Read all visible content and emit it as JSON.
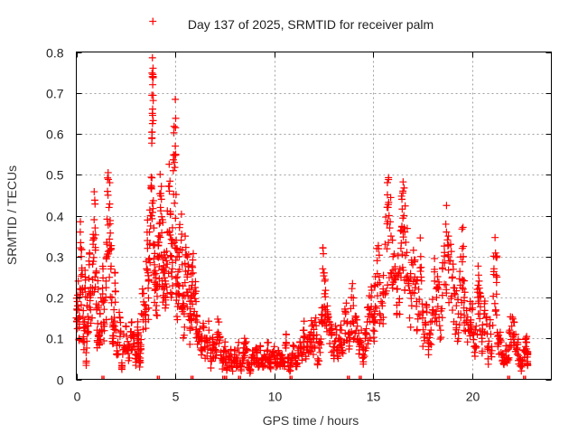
{
  "chart_data": {
    "type": "scatter",
    "title": "Day 137 of 2025, SRMTID for receiver palm",
    "xlabel": "GPS time / hours",
    "ylabel": "SRMTID / TECUs",
    "xlim": [
      0,
      24
    ],
    "ylim": [
      0,
      0.8
    ],
    "xticks": [
      0,
      5,
      10,
      15,
      20
    ],
    "xtick_labels": [
      "0",
      "5",
      "10",
      "15",
      "20"
    ],
    "yticks": [
      0,
      0.1,
      0.2,
      0.3,
      0.4,
      0.5,
      0.6,
      0.7,
      0.8
    ],
    "ytick_labels": [
      "0",
      "0.1",
      "0.2",
      "0.3",
      "0.4",
      "0.5",
      "0.6",
      "0.7",
      "0.8"
    ],
    "grid": true,
    "marker": "+",
    "series": [
      {
        "name": "palm",
        "color": "#ff0000",
        "points": [
          [
            0.0,
            0.15
          ],
          [
            0.05,
            0.19
          ],
          [
            0.1,
            0.24
          ],
          [
            0.15,
            0.1
          ],
          [
            0.2,
            0.36
          ],
          [
            0.25,
            0.3
          ],
          [
            0.3,
            0.22
          ],
          [
            0.35,
            0.14
          ],
          [
            0.4,
            0.09
          ],
          [
            0.45,
            0.25
          ],
          [
            0.5,
            0.04
          ],
          [
            0.55,
            0.18
          ],
          [
            0.6,
            0.13
          ],
          [
            0.65,
            0.28
          ],
          [
            0.7,
            0.2
          ],
          [
            0.8,
            0.15
          ],
          [
            0.85,
            0.33
          ],
          [
            0.9,
            0.39
          ],
          [
            0.95,
            0.37
          ],
          [
            1.0,
            0.26
          ],
          [
            1.05,
            0.12
          ],
          [
            1.1,
            0.22
          ],
          [
            1.15,
            0.09
          ],
          [
            1.2,
            0.16
          ],
          [
            1.3,
            0.19
          ],
          [
            1.35,
            0.27
          ],
          [
            1.4,
            0.13
          ],
          [
            1.5,
            0.24
          ],
          [
            1.55,
            0.33
          ],
          [
            1.6,
            0.45
          ],
          [
            1.65,
            0.42
          ],
          [
            1.7,
            0.38
          ],
          [
            1.75,
            0.32
          ],
          [
            1.8,
            0.2
          ],
          [
            1.85,
            0.1
          ],
          [
            1.9,
            0.17
          ],
          [
            1.95,
            0.26
          ],
          [
            2.0,
            0.12
          ],
          [
            2.1,
            0.09
          ],
          [
            2.2,
            0.15
          ],
          [
            2.3,
            0.04
          ],
          [
            2.4,
            0.11
          ],
          [
            2.5,
            0.13
          ],
          [
            2.6,
            0.07
          ],
          [
            2.7,
            0.08
          ],
          [
            2.8,
            0.14
          ],
          [
            2.9,
            0.1
          ],
          [
            3.0,
            0.06
          ],
          [
            3.05,
            0.05
          ],
          [
            3.1,
            0.12
          ],
          [
            3.15,
            0.09
          ],
          [
            3.2,
            0.03
          ],
          [
            3.25,
            0.08
          ],
          [
            3.3,
            0.16
          ],
          [
            3.4,
            0.21
          ],
          [
            3.5,
            0.18
          ],
          [
            3.55,
            0.27
          ],
          [
            3.6,
            0.32
          ],
          [
            3.65,
            0.24
          ],
          [
            3.7,
            0.36
          ],
          [
            3.75,
            0.4
          ],
          [
            3.8,
            0.47
          ],
          [
            3.82,
            0.59
          ],
          [
            3.84,
            0.65
          ],
          [
            3.86,
            0.72
          ],
          [
            3.88,
            0.74
          ],
          [
            3.9,
            0.33
          ],
          [
            3.95,
            0.28
          ],
          [
            4.0,
            0.22
          ],
          [
            4.05,
            0.18
          ],
          [
            4.1,
            0.3
          ],
          [
            4.15,
            0.35
          ],
          [
            4.2,
            0.38
          ],
          [
            4.25,
            0.42
          ],
          [
            4.3,
            0.44
          ],
          [
            4.35,
            0.39
          ],
          [
            4.4,
            0.26
          ],
          [
            4.45,
            0.31
          ],
          [
            4.5,
            0.24
          ],
          [
            4.55,
            0.29
          ],
          [
            4.6,
            0.36
          ],
          [
            4.7,
            0.46
          ],
          [
            4.75,
            0.41
          ],
          [
            4.8,
            0.3
          ],
          [
            4.85,
            0.27
          ],
          [
            4.9,
            0.51
          ],
          [
            4.95,
            0.53
          ],
          [
            5.0,
            0.57
          ],
          [
            5.02,
            0.55
          ],
          [
            5.05,
            0.32
          ],
          [
            5.1,
            0.25
          ],
          [
            5.15,
            0.21
          ],
          [
            5.2,
            0.3
          ],
          [
            5.3,
            0.34
          ],
          [
            5.35,
            0.28
          ],
          [
            5.4,
            0.18
          ],
          [
            5.45,
            0.16
          ],
          [
            5.5,
            0.35
          ],
          [
            5.6,
            0.25
          ],
          [
            5.65,
            0.28
          ],
          [
            5.7,
            0.22
          ],
          [
            5.75,
            0.12
          ],
          [
            5.8,
            0.2
          ],
          [
            5.85,
            0.23
          ],
          [
            5.9,
            0.26
          ],
          [
            6.0,
            0.21
          ],
          [
            6.05,
            0.19
          ],
          [
            6.1,
            0.14
          ],
          [
            6.2,
            0.11
          ],
          [
            6.3,
            0.1
          ],
          [
            6.4,
            0.13
          ],
          [
            6.5,
            0.08
          ],
          [
            6.6,
            0.1
          ],
          [
            6.7,
            0.12
          ],
          [
            6.8,
            0.05
          ],
          [
            6.9,
            0.09
          ],
          [
            7.0,
            0.07
          ],
          [
            7.1,
            0.11
          ],
          [
            7.2,
            0.14
          ],
          [
            7.3,
            0.06
          ],
          [
            7.4,
            0.04
          ],
          [
            7.5,
            0.08
          ],
          [
            7.6,
            0.03
          ],
          [
            7.7,
            0.05
          ],
          [
            7.8,
            0.07
          ],
          [
            7.9,
            0.02
          ],
          [
            8.0,
            0.06
          ],
          [
            8.1,
            0.04
          ],
          [
            8.2,
            0.09
          ],
          [
            8.3,
            0.03
          ],
          [
            8.4,
            0.05
          ],
          [
            8.5,
            0.1
          ],
          [
            8.6,
            0.07
          ],
          [
            8.7,
            0.04
          ],
          [
            8.8,
            0.02
          ],
          [
            8.9,
            0.06
          ],
          [
            9.0,
            0.05
          ],
          [
            9.1,
            0.07
          ],
          [
            9.2,
            0.03
          ],
          [
            9.3,
            0.08
          ],
          [
            9.4,
            0.04
          ],
          [
            9.5,
            0.06
          ],
          [
            9.6,
            0.05
          ],
          [
            9.7,
            0.09
          ],
          [
            9.8,
            0.04
          ],
          [
            9.9,
            0.06
          ],
          [
            10.0,
            0.08
          ],
          [
            10.1,
            0.03
          ],
          [
            10.2,
            0.07
          ],
          [
            10.3,
            0.05
          ],
          [
            10.4,
            0.06
          ],
          [
            10.5,
            0.04
          ],
          [
            10.6,
            0.09
          ],
          [
            10.7,
            0.05
          ],
          [
            10.8,
            0.03
          ],
          [
            10.9,
            0.06
          ],
          [
            11.0,
            0.08
          ],
          [
            11.1,
            0.04
          ],
          [
            11.2,
            0.07
          ],
          [
            11.3,
            0.09
          ],
          [
            11.4,
            0.06
          ],
          [
            11.5,
            0.12
          ],
          [
            11.6,
            0.05
          ],
          [
            11.7,
            0.1
          ],
          [
            11.8,
            0.08
          ],
          [
            11.9,
            0.13
          ],
          [
            12.0,
            0.1
          ],
          [
            12.1,
            0.15
          ],
          [
            12.2,
            0.05
          ],
          [
            12.3,
            0.09
          ],
          [
            12.4,
            0.14
          ],
          [
            12.45,
            0.27
          ],
          [
            12.5,
            0.26
          ],
          [
            12.55,
            0.24
          ],
          [
            12.6,
            0.17
          ],
          [
            12.7,
            0.16
          ],
          [
            12.8,
            0.12
          ],
          [
            12.9,
            0.11
          ],
          [
            13.0,
            0.08
          ],
          [
            13.1,
            0.13
          ],
          [
            13.2,
            0.07
          ],
          [
            13.3,
            0.1
          ],
          [
            13.4,
            0.12
          ],
          [
            13.5,
            0.09
          ],
          [
            13.6,
            0.16
          ],
          [
            13.7,
            0.14
          ],
          [
            13.8,
            0.11
          ],
          [
            13.9,
            0.2
          ],
          [
            14.0,
            0.18
          ],
          [
            14.1,
            0.15
          ],
          [
            14.2,
            0.13
          ],
          [
            14.3,
            0.08
          ],
          [
            14.4,
            0.12
          ],
          [
            14.5,
            0.06
          ],
          [
            14.6,
            0.1
          ],
          [
            14.7,
            0.14
          ],
          [
            14.8,
            0.17
          ],
          [
            14.9,
            0.2
          ],
          [
            15.0,
            0.12
          ],
          [
            15.05,
            0.16
          ],
          [
            15.1,
            0.23
          ],
          [
            15.2,
            0.29
          ],
          [
            15.3,
            0.25
          ],
          [
            15.4,
            0.19
          ],
          [
            15.5,
            0.21
          ],
          [
            15.6,
            0.33
          ],
          [
            15.7,
            0.38
          ],
          [
            15.75,
            0.42
          ],
          [
            15.8,
            0.4
          ],
          [
            15.9,
            0.35
          ],
          [
            16.0,
            0.3
          ],
          [
            16.1,
            0.27
          ],
          [
            16.2,
            0.22
          ],
          [
            16.3,
            0.26
          ],
          [
            16.4,
            0.32
          ],
          [
            16.45,
            0.44
          ],
          [
            16.5,
            0.46
          ],
          [
            16.55,
            0.4
          ],
          [
            16.6,
            0.36
          ],
          [
            16.7,
            0.31
          ],
          [
            16.8,
            0.24
          ],
          [
            16.9,
            0.21
          ],
          [
            17.0,
            0.28
          ],
          [
            17.1,
            0.25
          ],
          [
            17.2,
            0.19
          ],
          [
            17.3,
            0.22
          ],
          [
            17.4,
            0.3
          ],
          [
            17.5,
            0.15
          ],
          [
            17.6,
            0.11
          ],
          [
            17.7,
            0.18
          ],
          [
            17.8,
            0.08
          ],
          [
            17.9,
            0.14
          ],
          [
            18.0,
            0.17
          ],
          [
            18.1,
            0.24
          ],
          [
            18.2,
            0.2
          ],
          [
            18.3,
            0.22
          ],
          [
            18.4,
            0.12
          ],
          [
            18.5,
            0.27
          ],
          [
            18.6,
            0.31
          ],
          [
            18.7,
            0.36
          ],
          [
            18.8,
            0.35
          ],
          [
            18.9,
            0.29
          ],
          [
            19.0,
            0.25
          ],
          [
            19.1,
            0.21
          ],
          [
            19.2,
            0.18
          ],
          [
            19.3,
            0.16
          ],
          [
            19.4,
            0.23
          ],
          [
            19.5,
            0.32
          ],
          [
            19.55,
            0.3
          ],
          [
            19.6,
            0.2
          ],
          [
            19.7,
            0.14
          ],
          [
            19.8,
            0.12
          ],
          [
            19.9,
            0.19
          ],
          [
            20.0,
            0.17
          ],
          [
            20.1,
            0.08
          ],
          [
            20.2,
            0.13
          ],
          [
            20.3,
            0.23
          ],
          [
            20.35,
            0.24
          ],
          [
            20.4,
            0.21
          ],
          [
            20.5,
            0.1
          ],
          [
            20.6,
            0.16
          ],
          [
            20.7,
            0.15
          ],
          [
            20.8,
            0.05
          ],
          [
            20.9,
            0.13
          ],
          [
            21.0,
            0.07
          ],
          [
            21.1,
            0.27
          ],
          [
            21.2,
            0.3
          ],
          [
            21.25,
            0.25
          ],
          [
            21.3,
            0.08
          ],
          [
            21.4,
            0.1
          ],
          [
            21.5,
            0.06
          ],
          [
            21.6,
            0.04
          ],
          [
            21.7,
            0.07
          ],
          [
            21.8,
            0.05
          ],
          [
            21.9,
            0.12
          ],
          [
            22.0,
            0.13
          ],
          [
            22.1,
            0.14
          ],
          [
            22.2,
            0.11
          ],
          [
            22.3,
            0.09
          ],
          [
            22.4,
            0.05
          ],
          [
            22.5,
            0.03
          ],
          [
            22.6,
            0.07
          ],
          [
            22.7,
            0.08
          ],
          [
            22.75,
            0.09
          ],
          [
            22.8,
            0.06
          ]
        ]
      }
    ],
    "zero_markers_x": [
      1.3,
      4.1,
      5.8,
      7.4,
      7.5,
      8.2,
      10.8,
      13.7,
      14.3,
      21.8,
      22.6
    ]
  }
}
